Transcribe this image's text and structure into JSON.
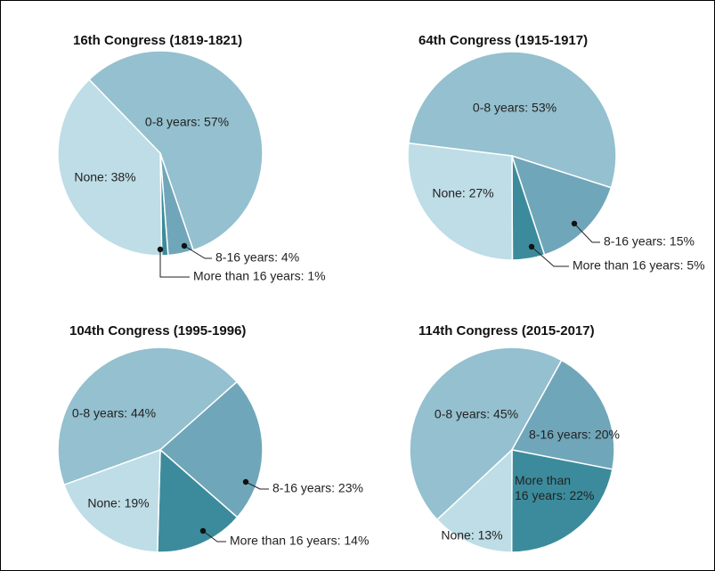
{
  "chart_data": [
    {
      "type": "pie",
      "title": "16th Congress (1819-1821)",
      "values": [
        57,
        4,
        1,
        38
      ],
      "value_labels": [
        "0-8 years: 57%",
        "8-16 years: 4%",
        "More than 16 years: 1%",
        "None: 38%"
      ],
      "colors": [
        "#94c0cf",
        "#70a6b9",
        "#3c8b9c",
        "#bedde6"
      ]
    },
    {
      "type": "pie",
      "title": "64th Congress (1915-1917)",
      "values": [
        53,
        15,
        5,
        27
      ],
      "value_labels": [
        "0-8 years: 53%",
        "8-16 years: 15%",
        "More than 16 years: 5%",
        "None: 27%"
      ],
      "colors": [
        "#94c0cf",
        "#70a6b9",
        "#3c8b9c",
        "#bedde6"
      ]
    },
    {
      "type": "pie",
      "title": "104th Congress (1995-1996)",
      "values": [
        44,
        23,
        14,
        19
      ],
      "value_labels": [
        "0-8 years: 44%",
        "8-16 years: 23%",
        "More than 16 years: 14%",
        "None: 19%"
      ],
      "colors": [
        "#94c0cf",
        "#70a6b9",
        "#3c8b9c",
        "#bedde6"
      ]
    },
    {
      "type": "pie",
      "title": "114th Congress (2015-2017)",
      "values": [
        45,
        20,
        22,
        13
      ],
      "value_labels": [
        "0-8 years: 45%",
        "8-16 years: 20%",
        "More than 16 years: 22%",
        "None: 13%"
      ],
      "colors": [
        "#94c0cf",
        "#70a6b9",
        "#3c8b9c",
        "#bedde6"
      ]
    }
  ]
}
